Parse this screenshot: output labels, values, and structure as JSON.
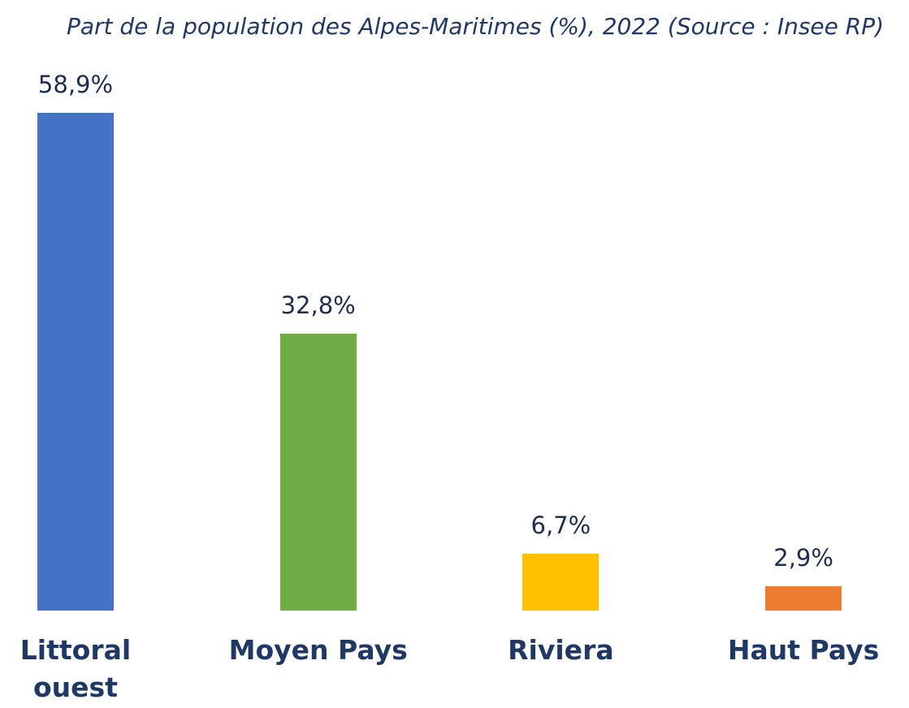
{
  "chart_data": {
    "type": "bar",
    "title": "Part de la population des Alpes-Maritimes (%), 2022 (Source : Insee RP)",
    "categories": [
      "Littoral ouest",
      "Moyen Pays",
      "Riviera",
      "Haut Pays"
    ],
    "values": [
      58.9,
      32.8,
      6.7,
      2.9
    ],
    "value_labels": [
      "58,9%",
      "32,8%",
      "6,7%",
      "2,9%"
    ],
    "colors": [
      "#4472c4",
      "#70ad47",
      "#ffc000",
      "#ed7d31"
    ]
  }
}
